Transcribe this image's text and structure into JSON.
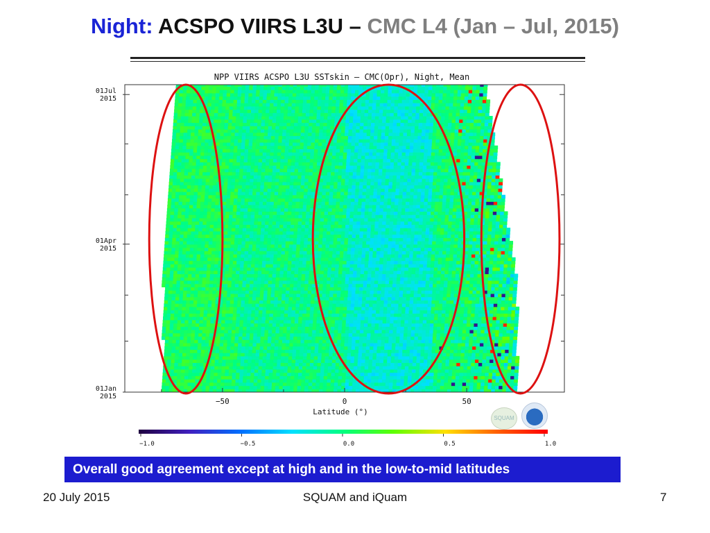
{
  "slide": {
    "title_part1": "Night:",
    "title_part2": "ACSPO VIIRS L3U –",
    "title_part3": "CMC L4 (Jan – Jul, 2015)",
    "caption": "Overall good agreement except at high and in the low-to-mid latitudes",
    "footer_left": "20 July 2015",
    "footer_center": "SQUAM and iQuam",
    "footer_right": "7",
    "logo1_text": "SQUAM"
  },
  "chart_data": {
    "type": "heatmap",
    "title": "NPP VIIRS ACSPO L3U SSTskin – CMC(Opr), Night,   Mean",
    "xlabel": "Latitude  (°)",
    "x_ticks": [
      -50,
      0,
      50
    ],
    "xlim": [
      -90,
      90
    ],
    "y_ticks": [
      {
        "label1": "01Jan",
        "label2": "2015",
        "day": 0
      },
      {
        "label1": "01Apr",
        "label2": "2015",
        "day": 90
      },
      {
        "label1": "01Jul",
        "label2": "2015",
        "day": 181
      }
    ],
    "ylim_days": [
      0,
      187
    ],
    "colorbar": {
      "range": [
        -1.0,
        1.0
      ],
      "tick_labels": [
        "-1.0",
        "-0.5",
        "0.0",
        "0.5",
        "1.0"
      ],
      "colors": [
        "#200040",
        "#4020c0",
        "#0070ff",
        "#00e0ff",
        "#00ff80",
        "#60ff00",
        "#ffe000",
        "#ff6000",
        "#ff0000"
      ]
    },
    "data_summary": [
      {
        "lat_range": [
          -75,
          -45
        ],
        "mean_diff": 0.05,
        "note": "yellow-green"
      },
      {
        "lat_range": [
          -45,
          0
        ],
        "mean_diff": -0.02,
        "note": "green"
      },
      {
        "lat_range": [
          0,
          35
        ],
        "mean_diff": -0.15,
        "note": "cyan-green"
      },
      {
        "lat_range": [
          35,
          75
        ],
        "mean_diff": 0.0,
        "note": "noisy, mixed"
      }
    ],
    "annotations": [
      {
        "shape": "ellipse",
        "color": "#dd1111",
        "lat_range": [
          -80,
          -50
        ]
      },
      {
        "shape": "ellipse",
        "color": "#dd1111",
        "lat_range": [
          -13,
          49
        ]
      },
      {
        "shape": "ellipse",
        "color": "#dd1111",
        "lat_range": [
          56,
          88
        ]
      }
    ]
  }
}
